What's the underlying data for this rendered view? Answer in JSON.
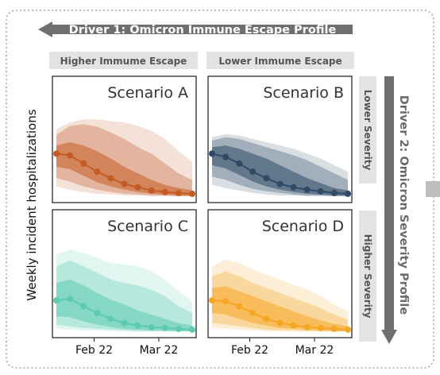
{
  "driver1": {
    "label": "Driver 1: Omicron Immune Escape Profile"
  },
  "driver2": {
    "label": "Driver 2: Omicron Severity Profile"
  },
  "columns": [
    "Higher Immume Escape",
    "Lower Immume Escape"
  ],
  "rows": [
    "Lower Severity",
    "Higher Severity"
  ],
  "ylabel": "Weekly incident hospitalizations",
  "colors": {
    "A": "#c45b25",
    "B": "#2f4a66",
    "C": "#5ccbb0",
    "D": "#f5a623",
    "frame": "#a8a8a8",
    "arrow": "#6f6f6f",
    "tag_bg": "#e3e3e3"
  },
  "chart_data": [
    {
      "type": "area",
      "title": "Scenario A",
      "x": [
        "Jan 15",
        "Jan 22",
        "Jan 29",
        "Feb 5",
        "Feb 12",
        "Feb 19",
        "Feb 26",
        "Mar 5",
        "Mar 12",
        "Mar 19",
        "Mar 26"
      ],
      "xticks": [
        "Feb 22",
        "Mar 22"
      ],
      "ylim": [
        0,
        1
      ],
      "median": [
        0.52,
        0.5,
        0.4,
        0.3,
        0.22,
        0.15,
        0.11,
        0.07,
        0.05,
        0.04,
        0.03
      ],
      "bands": [
        {
          "lower": [
            0.36,
            0.33,
            0.25,
            0.17,
            0.12,
            0.08,
            0.05,
            0.03,
            0.02,
            0.01,
            0.01
          ],
          "upper": [
            0.62,
            0.66,
            0.62,
            0.55,
            0.46,
            0.36,
            0.28,
            0.2,
            0.14,
            0.1,
            0.07
          ]
        },
        {
          "lower": [
            0.22,
            0.18,
            0.12,
            0.08,
            0.05,
            0.03,
            0.02,
            0.01,
            0.01,
            0.0,
            0.0
          ],
          "upper": [
            0.75,
            0.86,
            0.88,
            0.85,
            0.78,
            0.7,
            0.6,
            0.52,
            0.4,
            0.28,
            0.2
          ]
        },
        {
          "lower": [
            0.12,
            0.08,
            0.05,
            0.03,
            0.02,
            0.01,
            0.01,
            0.0,
            0.0,
            0.0,
            0.0
          ],
          "upper": [
            0.82,
            0.9,
            0.94,
            0.94,
            0.92,
            0.9,
            0.86,
            0.8,
            0.7,
            0.55,
            0.42
          ]
        }
      ]
    },
    {
      "type": "area",
      "title": "Scenario B",
      "x": [
        "Jan 15",
        "Jan 22",
        "Jan 29",
        "Feb 5",
        "Feb 12",
        "Feb 19",
        "Feb 26",
        "Mar 5",
        "Mar 12",
        "Mar 19",
        "Mar 26"
      ],
      "xticks": [
        "Feb 22",
        "Mar 22"
      ],
      "ylim": [
        0,
        1
      ],
      "median": [
        0.52,
        0.48,
        0.4,
        0.3,
        0.22,
        0.15,
        0.11,
        0.08,
        0.06,
        0.04,
        0.03
      ],
      "bands": [
        {
          "lower": [
            0.38,
            0.34,
            0.26,
            0.18,
            0.12,
            0.08,
            0.05,
            0.03,
            0.02,
            0.01,
            0.01
          ],
          "upper": [
            0.6,
            0.62,
            0.58,
            0.52,
            0.46,
            0.38,
            0.3,
            0.22,
            0.16,
            0.1,
            0.07
          ]
        },
        {
          "lower": [
            0.24,
            0.2,
            0.14,
            0.09,
            0.06,
            0.04,
            0.02,
            0.01,
            0.01,
            0.0,
            0.0
          ],
          "upper": [
            0.68,
            0.72,
            0.7,
            0.65,
            0.6,
            0.55,
            0.5,
            0.44,
            0.36,
            0.28,
            0.2
          ]
        },
        {
          "lower": [
            0.14,
            0.1,
            0.07,
            0.04,
            0.02,
            0.01,
            0.01,
            0.0,
            0.0,
            0.0,
            0.0
          ],
          "upper": [
            0.72,
            0.76,
            0.74,
            0.7,
            0.66,
            0.62,
            0.58,
            0.52,
            0.46,
            0.38,
            0.3
          ]
        }
      ]
    },
    {
      "type": "area",
      "title": "Scenario C",
      "x": [
        "Jan 15",
        "Jan 22",
        "Jan 29",
        "Feb 5",
        "Feb 12",
        "Feb 19",
        "Feb 26",
        "Mar 5",
        "Mar 12",
        "Mar 19",
        "Mar 26"
      ],
      "xticks": [
        "Feb 22",
        "Mar 22"
      ],
      "ylim": [
        0,
        1
      ],
      "median": [
        0.37,
        0.39,
        0.3,
        0.22,
        0.15,
        0.1,
        0.07,
        0.05,
        0.04,
        0.03,
        0.02
      ],
      "bands": [
        {
          "lower": [
            0.18,
            0.17,
            0.12,
            0.08,
            0.05,
            0.03,
            0.02,
            0.01,
            0.01,
            0.0,
            0.0
          ],
          "upper": [
            0.58,
            0.62,
            0.55,
            0.46,
            0.38,
            0.32,
            0.25,
            0.2,
            0.15,
            0.1,
            0.07
          ]
        },
        {
          "lower": [
            0.08,
            0.06,
            0.04,
            0.03,
            0.02,
            0.01,
            0.0,
            0.0,
            0.0,
            0.0,
            0.0
          ],
          "upper": [
            0.78,
            0.85,
            0.78,
            0.7,
            0.62,
            0.58,
            0.55,
            0.5,
            0.42,
            0.3,
            0.22
          ]
        },
        {
          "lower": [
            0.03,
            0.02,
            0.01,
            0.01,
            0.0,
            0.0,
            0.0,
            0.0,
            0.0,
            0.0,
            0.0
          ],
          "upper": [
            0.92,
            0.98,
            0.94,
            0.88,
            0.82,
            0.8,
            0.78,
            0.72,
            0.62,
            0.48,
            0.36
          ]
        }
      ]
    },
    {
      "type": "area",
      "title": "Scenario D",
      "x": [
        "Jan 15",
        "Jan 22",
        "Jan 29",
        "Feb 5",
        "Feb 12",
        "Feb 19",
        "Feb 26",
        "Mar 5",
        "Mar 12",
        "Mar 19",
        "Mar 26"
      ],
      "xticks": [
        "Feb 22",
        "Mar 22"
      ],
      "ylim": [
        0,
        1
      ],
      "median": [
        0.37,
        0.36,
        0.3,
        0.22,
        0.15,
        0.1,
        0.07,
        0.05,
        0.04,
        0.03,
        0.02
      ],
      "bands": [
        {
          "lower": [
            0.22,
            0.2,
            0.15,
            0.1,
            0.07,
            0.04,
            0.03,
            0.02,
            0.01,
            0.0,
            0.0
          ],
          "upper": [
            0.52,
            0.54,
            0.48,
            0.42,
            0.36,
            0.3,
            0.24,
            0.18,
            0.13,
            0.09,
            0.06
          ]
        },
        {
          "lower": [
            0.1,
            0.08,
            0.06,
            0.04,
            0.02,
            0.01,
            0.01,
            0.0,
            0.0,
            0.0,
            0.0
          ],
          "upper": [
            0.66,
            0.72,
            0.66,
            0.58,
            0.52,
            0.46,
            0.4,
            0.34,
            0.28,
            0.2,
            0.14
          ]
        },
        {
          "lower": [
            0.04,
            0.03,
            0.02,
            0.01,
            0.0,
            0.0,
            0.0,
            0.0,
            0.0,
            0.0,
            0.0
          ],
          "upper": [
            0.78,
            0.86,
            0.82,
            0.74,
            0.68,
            0.62,
            0.56,
            0.5,
            0.42,
            0.32,
            0.24
          ]
        }
      ]
    }
  ]
}
